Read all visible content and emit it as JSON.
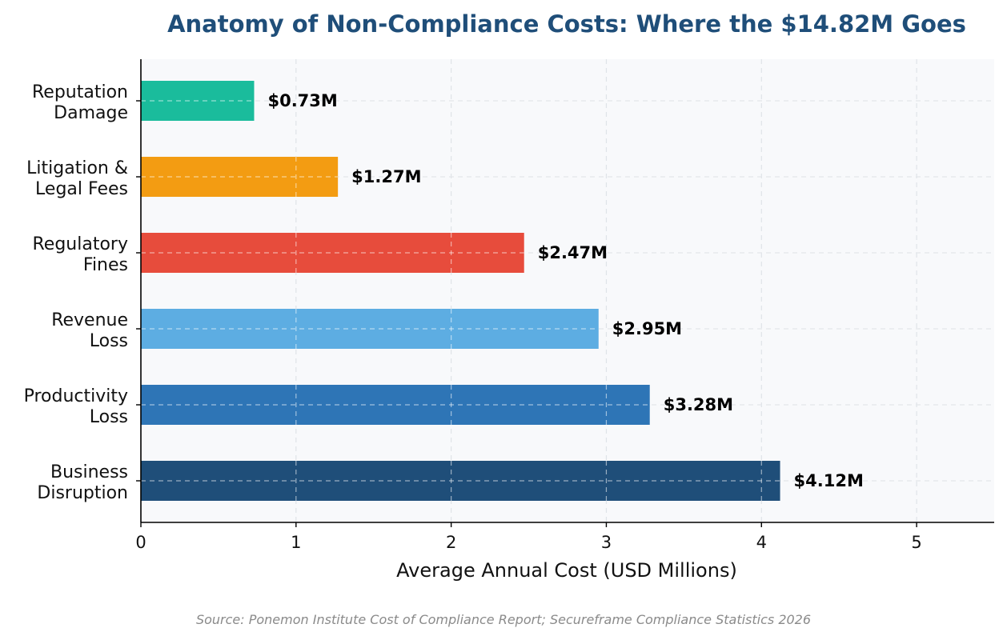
{
  "chart_data": {
    "type": "bar",
    "orientation": "horizontal",
    "title": "Anatomy of Non-Compliance Costs: Where the $14.82M Goes",
    "xlabel": "Average Annual Cost (USD Millions)",
    "ylabel": "",
    "xlim": [
      0,
      5.5
    ],
    "xticks": [
      "0",
      "1",
      "2",
      "3",
      "4",
      "5"
    ],
    "grid": true,
    "legend": "none",
    "categories": [
      [
        "Reputation",
        "Damage"
      ],
      [
        "Litigation &",
        "Legal Fees"
      ],
      [
        "Regulatory",
        "Fines"
      ],
      [
        "Revenue",
        "Loss"
      ],
      [
        "Productivity",
        "Loss"
      ],
      [
        "Business",
        "Disruption"
      ]
    ],
    "values": [
      0.73,
      1.27,
      2.47,
      2.95,
      3.28,
      4.12
    ],
    "value_labels": [
      "$0.73M",
      "$1.27M",
      "$2.47M",
      "$2.95M",
      "$3.28M",
      "$4.12M"
    ],
    "colors": [
      "#1abc9c",
      "#f39c12",
      "#e74c3c",
      "#5dade2",
      "#2e75b6",
      "#1f4e79"
    ],
    "source": "Source: Ponemon Institute Cost of Compliance Report; Secureframe Compliance Statistics 2026"
  }
}
